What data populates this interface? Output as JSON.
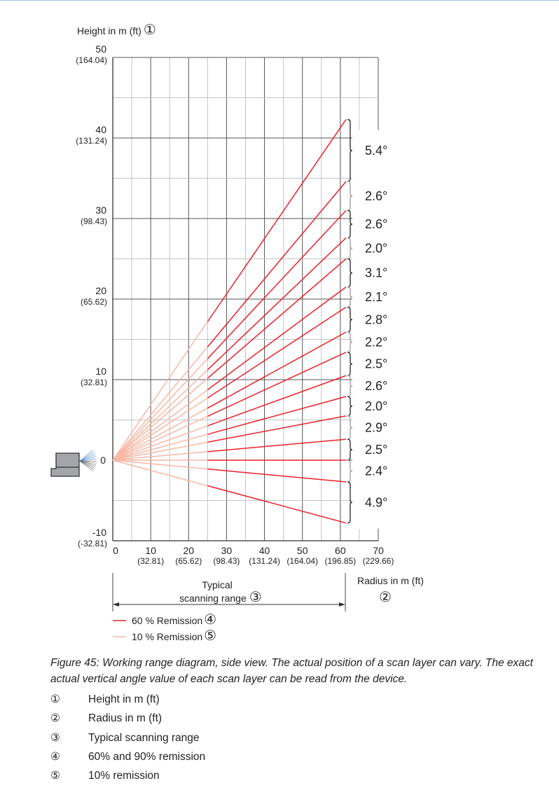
{
  "chart_data": {
    "type": "line",
    "title": "Working range diagram, side view",
    "ylabel": "Height in m (ft)",
    "ylabel_marker": "①",
    "xlabel": "Radius in m (ft)",
    "xlabel_marker": "②",
    "xlim": [
      0,
      70
    ],
    "ylim": [
      -10,
      50
    ],
    "grid": true,
    "x_ticks": [
      {
        "value": 0,
        "label": "0",
        "sub": ""
      },
      {
        "value": 10,
        "label": "10",
        "sub": "(32.81)"
      },
      {
        "value": 20,
        "label": "20",
        "sub": "(65.62)"
      },
      {
        "value": 30,
        "label": "30",
        "sub": "(98.43)"
      },
      {
        "value": 40,
        "label": "40",
        "sub": "(131.24)"
      },
      {
        "value": 50,
        "label": "50",
        "sub": "(164.04)"
      },
      {
        "value": 60,
        "label": "60",
        "sub": "(196.85)"
      },
      {
        "value": 70,
        "label": "70",
        "sub": "(229.66)"
      }
    ],
    "y_ticks": [
      {
        "value": 50,
        "label": "50",
        "sub": "(164.04)"
      },
      {
        "value": 40,
        "label": "40",
        "sub": "(131.24)"
      },
      {
        "value": 30,
        "label": "30",
        "sub": "(98.43)"
      },
      {
        "value": 20,
        "label": "20",
        "sub": "(65.62)"
      },
      {
        "value": 10,
        "label": "10",
        "sub": "(32.81)"
      },
      {
        "value": 0,
        "label": "0",
        "sub": ""
      },
      {
        "value": -10,
        "label": "-10",
        "sub": "(-32.81)"
      }
    ],
    "scan_range_end_m": 61.5,
    "low_remission_range_m": 25,
    "scan_layer_end_heights_m": [
      42.3,
      34.6,
      31.0,
      27.6,
      25.0,
      21.5,
      19.0,
      15.9,
      13.4,
      10.5,
      7.9,
      5.5,
      2.6,
      0,
      -2.7,
      -7.8
    ],
    "angle_labels": [
      "5.4°",
      "2.6°",
      "2.6°",
      "2.0°",
      "3.1°",
      "2.1°",
      "2.8°",
      "2.2°",
      "2.5°",
      "2.6°",
      "2.0°",
      "2.9°",
      "2.5°",
      "2.4°",
      "4.9°"
    ],
    "scanning_range_label_1": "Typical",
    "scanning_range_label_2": "scanning range",
    "scanning_range_marker": "③",
    "series": [
      {
        "name": "60 % Remission",
        "marker": "④",
        "color": "#e8222b"
      },
      {
        "name": "10 % Remission",
        "marker": "⑤",
        "color": "#f6b9a6"
      }
    ]
  },
  "caption": "Figure 45: Working range diagram, side view. The actual position of a scan layer can vary. The exact actual vertical angle value of each scan layer can be read from the device.",
  "legend": [
    {
      "num": "①",
      "text": "Height in m (ft)"
    },
    {
      "num": "②",
      "text": "Radius in m (ft)"
    },
    {
      "num": "③",
      "text": "Typical scanning range"
    },
    {
      "num": "④",
      "text": "60% and 90% remission"
    },
    {
      "num": "⑤",
      "text": "10% remission"
    }
  ]
}
